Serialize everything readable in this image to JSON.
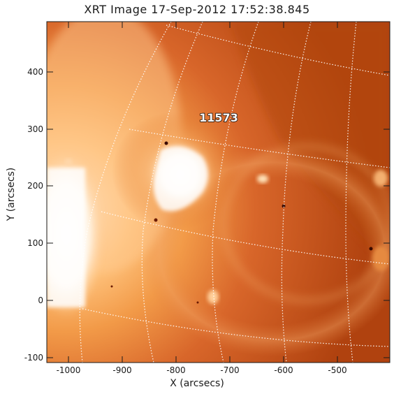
{
  "title": "XRT Image 17-Sep-2012 17:52:38.845",
  "x_axis": {
    "label": "X (arcsecs)",
    "ticks": [
      "-1000",
      "-900",
      "-800",
      "-700",
      "-600",
      "-500"
    ]
  },
  "y_axis": {
    "label": "Y (arcsecs)",
    "ticks": [
      "-100",
      "0",
      "100",
      "200",
      "300",
      "400"
    ]
  },
  "active_region": "11573",
  "colors": {
    "sun_dark": "#b0420f",
    "sun_mid": "#e0762c",
    "sun_bright": "#ffc88c",
    "core": "#ffffff",
    "grid": "#ffffff"
  }
}
